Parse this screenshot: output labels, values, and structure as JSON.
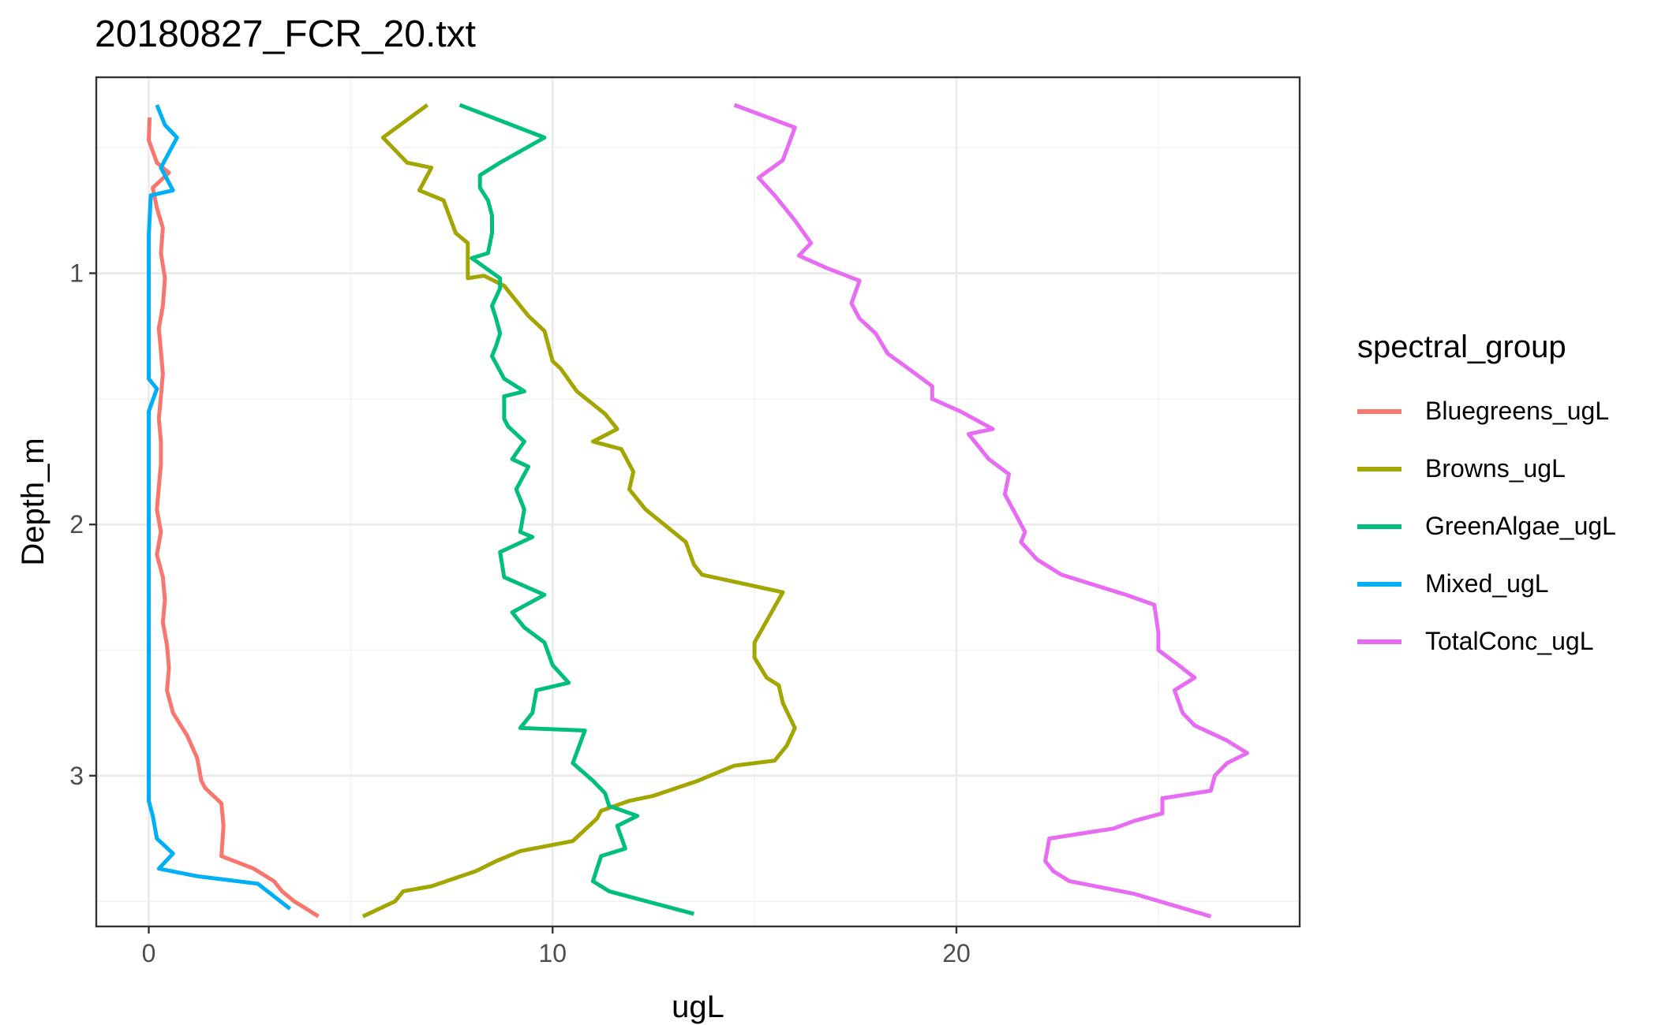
{
  "chart_data": {
    "type": "line",
    "title": "20180827_FCR_20.txt",
    "xlabel": "ugL",
    "ylabel": "Depth_m",
    "xlim": [
      -1.3,
      28.5
    ],
    "ylim": [
      3.6,
      0.22
    ],
    "y_reversed": true,
    "x_ticks": [
      0,
      10,
      20
    ],
    "x_tick_labels": [
      "0",
      "10",
      "20"
    ],
    "y_ticks": [
      1,
      2,
      3
    ],
    "y_tick_labels": [
      "1",
      "2",
      "3"
    ],
    "grid": true,
    "legend": {
      "title": "spectral_group",
      "position": "right"
    },
    "series": [
      {
        "name": "Bluegreens_ugL",
        "color": "#F8766D",
        "points": [
          [
            0.02,
            0.38
          ],
          [
            0.0,
            0.47
          ],
          [
            0.2,
            0.56
          ],
          [
            0.5,
            0.6
          ],
          [
            0.1,
            0.66
          ],
          [
            0.2,
            0.74
          ],
          [
            0.35,
            0.82
          ],
          [
            0.3,
            0.92
          ],
          [
            0.4,
            1.02
          ],
          [
            0.35,
            1.13
          ],
          [
            0.25,
            1.22
          ],
          [
            0.3,
            1.31
          ],
          [
            0.35,
            1.4
          ],
          [
            0.3,
            1.49
          ],
          [
            0.25,
            1.58
          ],
          [
            0.3,
            1.67
          ],
          [
            0.3,
            1.76
          ],
          [
            0.25,
            1.85
          ],
          [
            0.2,
            1.94
          ],
          [
            0.3,
            2.03
          ],
          [
            0.2,
            2.12
          ],
          [
            0.35,
            2.21
          ],
          [
            0.4,
            2.3
          ],
          [
            0.35,
            2.39
          ],
          [
            0.45,
            2.48
          ],
          [
            0.5,
            2.57
          ],
          [
            0.45,
            2.66
          ],
          [
            0.6,
            2.75
          ],
          [
            0.95,
            2.84
          ],
          [
            1.2,
            2.93
          ],
          [
            1.3,
            3.02
          ],
          [
            1.4,
            3.05
          ],
          [
            1.8,
            3.11
          ],
          [
            1.85,
            3.2
          ],
          [
            1.8,
            3.32
          ],
          [
            2.6,
            3.37
          ],
          [
            3.1,
            3.42
          ],
          [
            3.3,
            3.46
          ],
          [
            3.6,
            3.5
          ],
          [
            4.2,
            3.56
          ]
        ]
      },
      {
        "name": "Browns_ugL",
        "color": "#A3A500",
        "points": [
          [
            6.9,
            0.33
          ],
          [
            5.8,
            0.46
          ],
          [
            6.4,
            0.56
          ],
          [
            7.0,
            0.58
          ],
          [
            6.7,
            0.67
          ],
          [
            7.3,
            0.71
          ],
          [
            7.6,
            0.84
          ],
          [
            7.9,
            0.88
          ],
          [
            7.9,
            1.02
          ],
          [
            8.3,
            1.01
          ],
          [
            8.8,
            1.05
          ],
          [
            9.4,
            1.17
          ],
          [
            9.8,
            1.23
          ],
          [
            10.0,
            1.35
          ],
          [
            10.2,
            1.38
          ],
          [
            10.6,
            1.47
          ],
          [
            11.3,
            1.56
          ],
          [
            11.6,
            1.62
          ],
          [
            11.0,
            1.67
          ],
          [
            11.7,
            1.7
          ],
          [
            12.0,
            1.79
          ],
          [
            11.9,
            1.86
          ],
          [
            12.3,
            1.94
          ],
          [
            13.3,
            2.07
          ],
          [
            13.5,
            2.16
          ],
          [
            13.7,
            2.2
          ],
          [
            15.7,
            2.27
          ],
          [
            15.0,
            2.47
          ],
          [
            15.0,
            2.53
          ],
          [
            15.3,
            2.61
          ],
          [
            15.6,
            2.64
          ],
          [
            15.7,
            2.71
          ],
          [
            16.0,
            2.81
          ],
          [
            15.8,
            2.88
          ],
          [
            15.5,
            2.94
          ],
          [
            14.5,
            2.96
          ],
          [
            13.6,
            3.02
          ],
          [
            12.5,
            3.08
          ],
          [
            11.9,
            3.1
          ],
          [
            11.2,
            3.14
          ],
          [
            11.1,
            3.17
          ],
          [
            10.5,
            3.26
          ],
          [
            9.2,
            3.3
          ],
          [
            8.6,
            3.34
          ],
          [
            8.1,
            3.38
          ],
          [
            7.0,
            3.44
          ],
          [
            6.3,
            3.46
          ],
          [
            6.1,
            3.5
          ],
          [
            5.3,
            3.56
          ]
        ]
      },
      {
        "name": "GreenAlgae_ugL",
        "color": "#00BF7D",
        "points": [
          [
            7.7,
            0.33
          ],
          [
            9.8,
            0.46
          ],
          [
            8.7,
            0.56
          ],
          [
            8.2,
            0.61
          ],
          [
            8.2,
            0.66
          ],
          [
            8.4,
            0.71
          ],
          [
            8.5,
            0.77
          ],
          [
            8.5,
            0.84
          ],
          [
            8.4,
            0.92
          ],
          [
            8.0,
            0.94
          ],
          [
            8.7,
            1.02
          ],
          [
            8.7,
            1.06
          ],
          [
            8.5,
            1.13
          ],
          [
            8.6,
            1.18
          ],
          [
            8.7,
            1.24
          ],
          [
            8.6,
            1.29
          ],
          [
            8.5,
            1.33
          ],
          [
            8.8,
            1.42
          ],
          [
            9.3,
            1.47
          ],
          [
            8.8,
            1.49
          ],
          [
            8.8,
            1.58
          ],
          [
            8.9,
            1.61
          ],
          [
            9.3,
            1.67
          ],
          [
            9.0,
            1.74
          ],
          [
            9.4,
            1.77
          ],
          [
            9.1,
            1.86
          ],
          [
            9.3,
            1.94
          ],
          [
            9.2,
            2.03
          ],
          [
            9.5,
            2.05
          ],
          [
            8.7,
            2.11
          ],
          [
            8.8,
            2.21
          ],
          [
            9.8,
            2.28
          ],
          [
            9.0,
            2.35
          ],
          [
            9.3,
            2.41
          ],
          [
            9.8,
            2.47
          ],
          [
            10.0,
            2.56
          ],
          [
            10.4,
            2.63
          ],
          [
            9.6,
            2.66
          ],
          [
            9.5,
            2.75
          ],
          [
            9.2,
            2.81
          ],
          [
            10.8,
            2.82
          ],
          [
            10.5,
            2.95
          ],
          [
            11.0,
            3.02
          ],
          [
            11.3,
            3.07
          ],
          [
            11.4,
            3.12
          ],
          [
            12.1,
            3.16
          ],
          [
            11.6,
            3.2
          ],
          [
            11.8,
            3.29
          ],
          [
            11.2,
            3.32
          ],
          [
            11.0,
            3.42
          ],
          [
            11.4,
            3.46
          ],
          [
            13.5,
            3.55
          ]
        ]
      },
      {
        "name": "Mixed_ugL",
        "color": "#00B0F6",
        "points": [
          [
            0.2,
            0.33
          ],
          [
            0.4,
            0.41
          ],
          [
            0.7,
            0.46
          ],
          [
            0.3,
            0.58
          ],
          [
            0.6,
            0.67
          ],
          [
            0.05,
            0.69
          ],
          [
            0.0,
            0.85
          ],
          [
            0.0,
            1.02
          ],
          [
            0.0,
            1.22
          ],
          [
            0.0,
            1.42
          ],
          [
            0.2,
            1.46
          ],
          [
            0.0,
            1.55
          ],
          [
            0.0,
            1.75
          ],
          [
            0.0,
            1.95
          ],
          [
            0.0,
            2.15
          ],
          [
            0.0,
            2.35
          ],
          [
            0.0,
            2.55
          ],
          [
            0.0,
            2.75
          ],
          [
            0.0,
            2.95
          ],
          [
            0.0,
            3.1
          ],
          [
            0.1,
            3.16
          ],
          [
            0.2,
            3.25
          ],
          [
            0.4,
            3.28
          ],
          [
            0.6,
            3.31
          ],
          [
            0.25,
            3.37
          ],
          [
            1.2,
            3.4
          ],
          [
            2.7,
            3.43
          ],
          [
            3.1,
            3.48
          ],
          [
            3.5,
            3.53
          ]
        ]
      },
      {
        "name": "TotalConc_ugL",
        "color": "#E76BF3",
        "points": [
          [
            14.5,
            0.33
          ],
          [
            16.0,
            0.42
          ],
          [
            15.7,
            0.55
          ],
          [
            15.1,
            0.62
          ],
          [
            15.5,
            0.69
          ],
          [
            16.0,
            0.79
          ],
          [
            16.4,
            0.88
          ],
          [
            16.1,
            0.93
          ],
          [
            16.8,
            0.98
          ],
          [
            17.6,
            1.03
          ],
          [
            17.4,
            1.12
          ],
          [
            17.6,
            1.18
          ],
          [
            18.0,
            1.24
          ],
          [
            18.3,
            1.32
          ],
          [
            18.9,
            1.39
          ],
          [
            19.4,
            1.45
          ],
          [
            19.4,
            1.5
          ],
          [
            20.1,
            1.55
          ],
          [
            20.9,
            1.62
          ],
          [
            20.3,
            1.64
          ],
          [
            20.8,
            1.74
          ],
          [
            21.3,
            1.8
          ],
          [
            21.2,
            1.88
          ],
          [
            21.4,
            1.94
          ],
          [
            21.7,
            2.03
          ],
          [
            21.6,
            2.07
          ],
          [
            22.0,
            2.14
          ],
          [
            22.6,
            2.2
          ],
          [
            24.2,
            2.28
          ],
          [
            24.9,
            2.32
          ],
          [
            25.0,
            2.43
          ],
          [
            25.0,
            2.5
          ],
          [
            25.5,
            2.56
          ],
          [
            25.9,
            2.61
          ],
          [
            25.4,
            2.66
          ],
          [
            25.6,
            2.75
          ],
          [
            25.9,
            2.8
          ],
          [
            26.7,
            2.86
          ],
          [
            27.2,
            2.91
          ],
          [
            26.7,
            2.95
          ],
          [
            26.4,
            3.0
          ],
          [
            26.3,
            3.06
          ],
          [
            25.1,
            3.09
          ],
          [
            25.1,
            3.15
          ],
          [
            24.4,
            3.18
          ],
          [
            23.9,
            3.21
          ],
          [
            22.3,
            3.25
          ],
          [
            22.2,
            3.34
          ],
          [
            22.4,
            3.38
          ],
          [
            22.8,
            3.42
          ],
          [
            24.4,
            3.47
          ],
          [
            26.3,
            3.56
          ]
        ]
      }
    ]
  }
}
